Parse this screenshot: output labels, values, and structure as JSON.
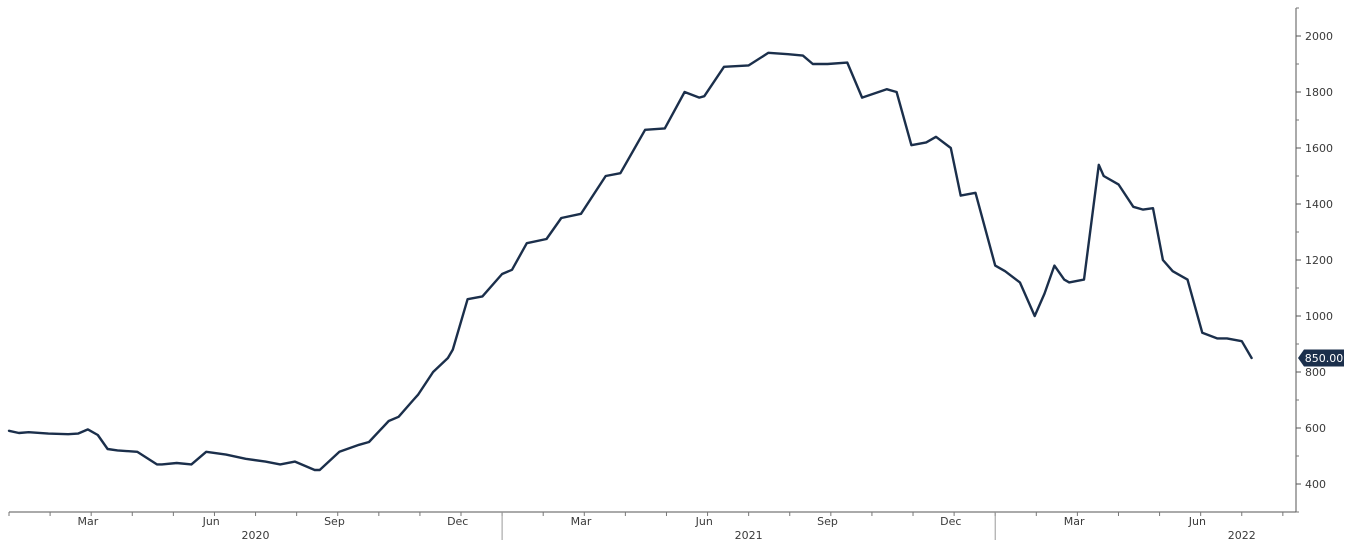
{
  "chart_data": {
    "type": "line",
    "title": "",
    "xlabel": "",
    "ylabel": "",
    "ylim": [
      300,
      2100
    ],
    "y_ticks": [
      400,
      600,
      800,
      1000,
      1200,
      1400,
      1600,
      1800,
      2000
    ],
    "x_month_labels": [
      {
        "label": "Mar",
        "x": 2020.16
      },
      {
        "label": "Jun",
        "x": 2020.41
      },
      {
        "label": "Sep",
        "x": 2020.66
      },
      {
        "label": "Dec",
        "x": 2020.91
      },
      {
        "label": "Mar",
        "x": 2021.16
      },
      {
        "label": "Jun",
        "x": 2021.41
      },
      {
        "label": "Sep",
        "x": 2021.66
      },
      {
        "label": "Dec",
        "x": 2021.91
      },
      {
        "label": "Mar",
        "x": 2022.16
      },
      {
        "label": "Jun",
        "x": 2022.41
      }
    ],
    "x_year_labels": [
      {
        "label": "2020",
        "x": 2020.5
      },
      {
        "label": "2021",
        "x": 2021.5
      },
      {
        "label": "2022",
        "x": 2022.5
      }
    ],
    "year_dividers": [
      2021.0,
      2022.0
    ],
    "last_value_label": "850.00",
    "grid": false,
    "line_color": "#1b2f4b",
    "badge_color": "#1b2f4b",
    "series": [
      {
        "x": [
          2020.0,
          2020.02,
          2020.04,
          2020.08,
          2020.12,
          2020.14,
          2020.16,
          2020.18,
          2020.2,
          2020.22,
          2020.26,
          2020.3,
          2020.31,
          2020.34,
          2020.37,
          2020.4,
          2020.44,
          2020.48,
          2020.52,
          2020.55,
          2020.58,
          2020.62,
          2020.63,
          2020.67,
          2020.71,
          2020.73,
          2020.77,
          2020.79,
          2020.82,
          2020.83,
          2020.86,
          2020.89,
          2020.9,
          2020.93,
          2020.96,
          2021.0,
          2021.02,
          2021.05,
          2021.09,
          2021.12,
          2021.16,
          2021.21,
          2021.24,
          2021.29,
          2021.33,
          2021.37,
          2021.4,
          2021.41,
          2021.45,
          2021.5,
          2021.54,
          2021.58,
          2021.61,
          2021.63,
          2021.66,
          2021.7,
          2021.73,
          2021.78,
          2021.8,
          2021.83,
          2021.86,
          2021.88,
          2021.91,
          2021.93,
          2021.96,
          2022.0,
          2022.02,
          2022.05,
          2022.08,
          2022.1,
          2022.12,
          2022.14,
          2022.15,
          2022.18,
          2022.21,
          2022.22,
          2022.25,
          2022.28,
          2022.3,
          2022.32,
          2022.34,
          2022.36,
          2022.38,
          2022.39,
          2022.42,
          2022.45,
          2022.47,
          2022.5,
          2022.52
        ],
        "y": [
          590,
          582,
          585,
          580,
          578,
          580,
          595,
          575,
          525,
          520,
          515,
          470,
          470,
          475,
          470,
          515,
          505,
          490,
          480,
          470,
          480,
          450,
          450,
          515,
          540,
          550,
          625,
          640,
          700,
          720,
          800,
          850,
          880,
          1060,
          1070,
          1150,
          1165,
          1260,
          1275,
          1350,
          1365,
          1500,
          1510,
          1665,
          1670,
          1800,
          1780,
          1785,
          1890,
          1895,
          1940,
          1935,
          1930,
          1900,
          1900,
          1905,
          1780,
          1810,
          1800,
          1610,
          1620,
          1640,
          1600,
          1430,
          1440,
          1180,
          1160,
          1120,
          1000,
          1080,
          1180,
          1130,
          1120,
          1130,
          1540,
          1500,
          1470,
          1390,
          1380,
          1385,
          1200,
          1160,
          1140,
          1130,
          940,
          920,
          920,
          910,
          850
        ]
      }
    ]
  }
}
